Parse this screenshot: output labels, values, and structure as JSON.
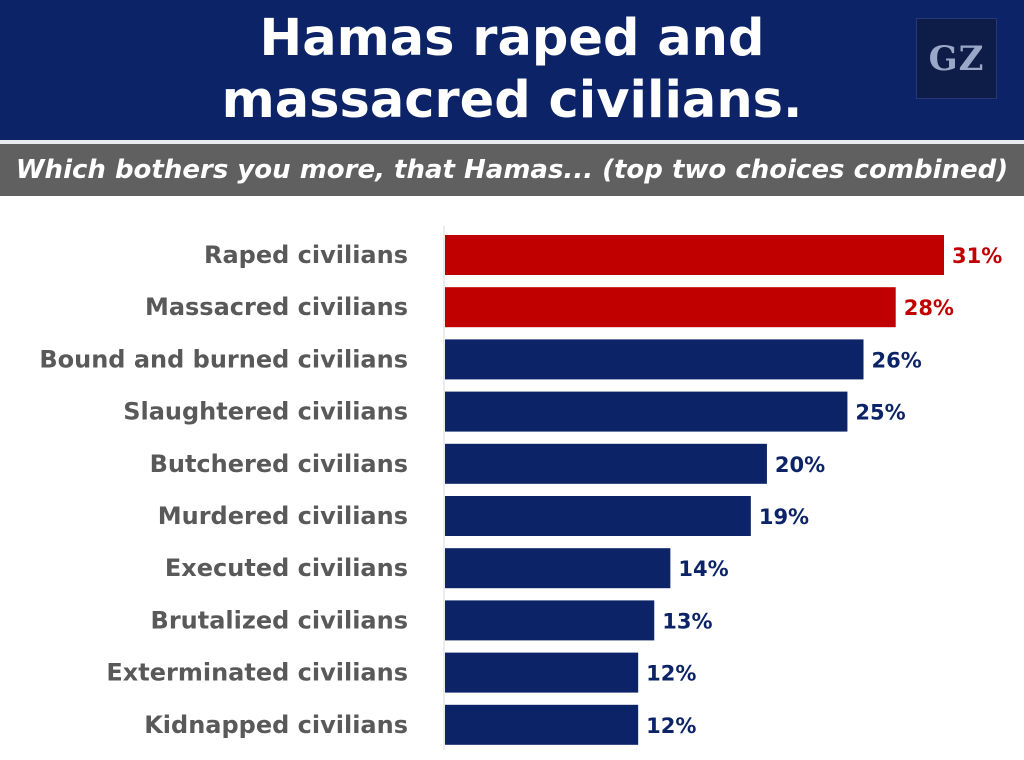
{
  "header": {
    "title_line1": "Hamas raped and",
    "title_line2": "massacred civilians.",
    "logo_text": "GZ",
    "subtitle": "Which bothers you more, that Hamas... (top two choices combined)"
  },
  "colors": {
    "header_bg": "#0c2467",
    "subtitle_bg": "#606060",
    "highlight_bar": "#c00000",
    "default_bar": "#0c2467",
    "category_text": "#595959"
  },
  "chart_data": {
    "type": "bar",
    "orientation": "horizontal",
    "title": "Hamas raped and massacred civilians.",
    "subtitle": "Which bothers you more, that Hamas... (top two choices combined)",
    "categories": [
      "Raped civilians",
      "Massacred civilians",
      "Bound and burned civilians",
      "Slaughtered civilians",
      "Butchered civilians",
      "Murdered civilians",
      "Executed civilians",
      "Brutalized civilians",
      "Exterminated civilians",
      "Kidnapped civilians"
    ],
    "values": [
      31,
      28,
      26,
      25,
      20,
      19,
      14,
      13,
      12,
      12
    ],
    "value_labels": [
      "31%",
      "28%",
      "26%",
      "25%",
      "20%",
      "19%",
      "14%",
      "13%",
      "12%",
      "12%"
    ],
    "highlighted": [
      true,
      true,
      false,
      false,
      false,
      false,
      false,
      false,
      false,
      false
    ],
    "xlim": [
      0,
      31
    ],
    "grid": false,
    "legend": "none"
  }
}
